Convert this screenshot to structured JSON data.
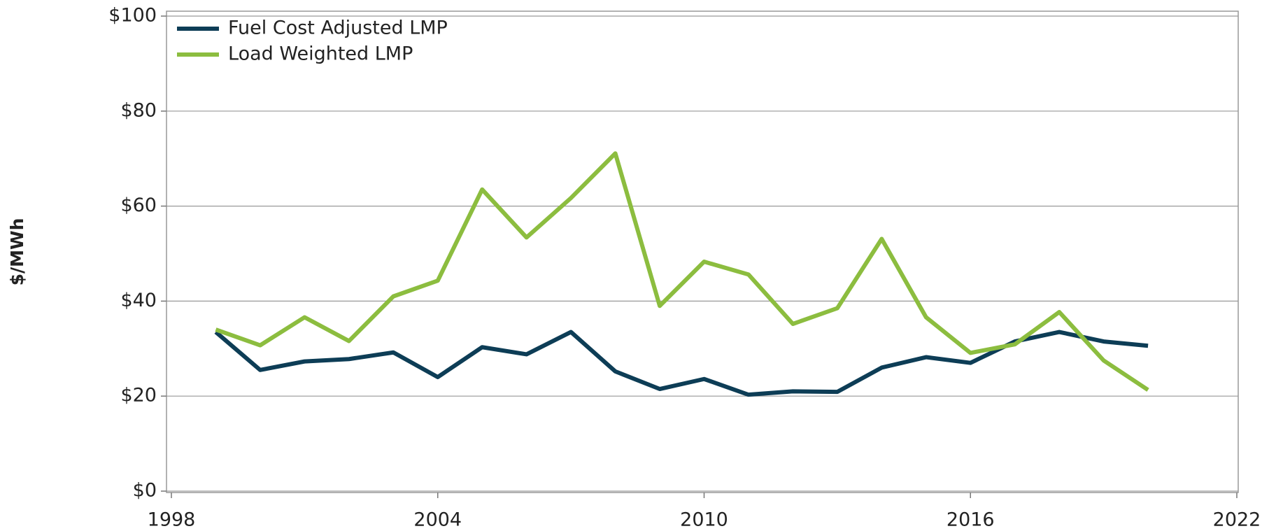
{
  "chart_data": {
    "type": "line",
    "y_label": "$/MWh",
    "x": [
      1999,
      2000,
      2001,
      2002,
      2003,
      2004,
      2005,
      2006,
      2007,
      2008,
      2009,
      2010,
      2011,
      2012,
      2013,
      2014,
      2015,
      2016,
      2017,
      2018,
      2019,
      2020
    ],
    "series": [
      {
        "name": "Fuel Cost Adjusted LMP",
        "color": "#0d3d56",
        "values": [
          33.5,
          25.5,
          27.3,
          27.8,
          29.2,
          24.0,
          30.3,
          28.8,
          33.5,
          25.2,
          21.5,
          23.6,
          20.3,
          21.0,
          20.9,
          26.0,
          28.2,
          27.0,
          31.5,
          33.5,
          31.5,
          30.6
        ]
      },
      {
        "name": "Load Weighted LMP",
        "color": "#8cbd3f",
        "values": [
          34.0,
          30.7,
          36.6,
          31.6,
          41.0,
          44.3,
          63.5,
          53.4,
          61.7,
          71.1,
          39.0,
          48.3,
          45.6,
          35.2,
          38.5,
          53.1,
          36.6,
          29.1,
          30.9,
          37.7,
          27.5,
          21.3
        ]
      }
    ],
    "xlim": [
      1998,
      2022
    ],
    "xticks": [
      1998,
      2004,
      2010,
      2016,
      2022
    ],
    "ylim": [
      0,
      100
    ],
    "yticks": [
      {
        "value": 0,
        "label": "$0"
      },
      {
        "value": 20,
        "label": "$20"
      },
      {
        "value": 40,
        "label": "$40"
      },
      {
        "value": 60,
        "label": "$60"
      },
      {
        "value": 80,
        "label": "$80"
      },
      {
        "value": 100,
        "label": "$100"
      }
    ],
    "grid": true,
    "legend": "upper left"
  }
}
